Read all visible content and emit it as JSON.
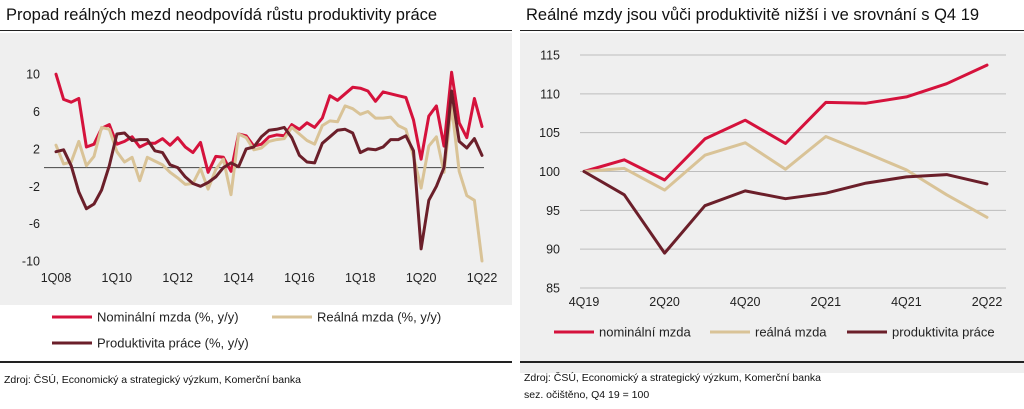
{
  "left": {
    "title": "Propad reálných mezd neodpovídá růstu produktivity práce",
    "source": "Zdroj: ČSÚ, Economický a strategický výzkum, Komerční banka"
  },
  "right": {
    "title": "Reálné mzdy jsou vůči produktivitě nižší i ve srovnání s Q4 19",
    "source": "Zdroj: ČSÚ, Economický a strategický výzkum, Komerční banka",
    "note": "sez. očištěno, Q4 19 = 100"
  },
  "chart_data": [
    {
      "type": "line",
      "title": "Propad reálných mezd neodpovídá růstu produktivity práce",
      "x_tick_labels": [
        "1Q08",
        "1Q10",
        "1Q12",
        "1Q14",
        "1Q16",
        "1Q18",
        "1Q20",
        "1Q22"
      ],
      "x_tick_index": [
        0,
        8,
        16,
        24,
        32,
        40,
        48,
        56
      ],
      "ylim": [
        -10,
        12
      ],
      "y_ticks": [
        10,
        6,
        2,
        -2,
        -6,
        -10
      ],
      "grid": false,
      "legend_position": "bottom",
      "series": [
        {
          "name": "Nominální mzda (%, y/y)",
          "color": "#d5123c",
          "values": [
            10,
            7.3,
            7,
            7.4,
            2.2,
            2.5,
            4.2,
            4.6,
            2.5,
            2.8,
            3.3,
            2.2,
            2.6,
            2.6,
            3.1,
            2.4,
            3.2,
            2.2,
            1.6,
            2.7,
            -0.5,
            1.2,
            1.1,
            -0.4,
            3.6,
            3.4,
            2.3,
            2.5,
            3.3,
            3.5,
            3.4,
            4.6,
            4.1,
            4.8,
            4.3,
            5.3,
            7.7,
            7.2,
            7.9,
            8.6,
            8.5,
            8.2,
            7.1,
            8.1,
            7.9,
            7.7,
            7.5,
            5.1,
            0.9,
            5.5,
            6.6,
            2.3,
            10.2,
            4.8,
            3.2,
            7.4,
            4.4
          ]
        },
        {
          "name": "Reálná mzda (%, y/y)",
          "color": "#d9c397",
          "values": [
            2.4,
            0.4,
            0.6,
            2.8,
            0.2,
            1.2,
            4.3,
            4.1,
            1.7,
            0.6,
            1.1,
            -1.4,
            1.1,
            0.7,
            0.3,
            -0.5,
            -1.1,
            -1.8,
            -1.7,
            -0.1,
            -2.3,
            -0.2,
            0.9,
            -2.9,
            3.6,
            3.2,
            1.9,
            2.1,
            2.8,
            3.0,
            3.1,
            4.3,
            3.6,
            2.9,
            2.5,
            4.5,
            5.0,
            4.9,
            6.6,
            6.3,
            5.7,
            6.0,
            5.3,
            5.3,
            5.4,
            4.5,
            4.1,
            1.2,
            -2.2,
            2.3,
            3.3,
            -0.5,
            6.6,
            -0.4,
            -3.0,
            -3.5,
            -10.0
          ]
        },
        {
          "name": "Produktivita práce (%, y/y)",
          "color": "#6b1f2a",
          "values": [
            1.7,
            1.9,
            0.2,
            -2.6,
            -4.4,
            -3.9,
            -2.4,
            0.2,
            3.6,
            3.7,
            2.9,
            3.0,
            3.0,
            1.8,
            1.6,
            0.3,
            0.0,
            -1.0,
            -1.7,
            -2.0,
            -1.6,
            -1.0,
            0.0,
            0.5,
            0.1,
            2.0,
            2.2,
            3.3,
            4.0,
            4.1,
            4.3,
            3.2,
            1.3,
            0.6,
            0.5,
            2.6,
            3.3,
            4.0,
            4.1,
            3.7,
            1.6,
            2.0,
            1.9,
            2.2,
            3.0,
            3.0,
            3.4,
            1.8,
            -8.7,
            -3.5,
            -2.0,
            0.0,
            8.2,
            2.8,
            2.1,
            3.1,
            1.3
          ]
        }
      ]
    },
    {
      "type": "line",
      "title": "Reálné mzdy jsou vůči produktivitě nižší i ve srovnání s Q4 19",
      "categories": [
        "4Q19",
        "1Q20",
        "2Q20",
        "3Q20",
        "4Q20",
        "1Q21",
        "2Q21",
        "3Q21",
        "4Q21",
        "1Q22",
        "2Q22"
      ],
      "x_tick_labels": [
        "4Q19",
        "2Q20",
        "4Q20",
        "2Q21",
        "4Q21",
        "2Q22"
      ],
      "x_tick_index": [
        0,
        2,
        4,
        6,
        8,
        10
      ],
      "ylim": [
        85,
        115
      ],
      "y_ticks": [
        115,
        110,
        105,
        100,
        95,
        90,
        85
      ],
      "grid": true,
      "legend_position": "bottom",
      "series": [
        {
          "name": "nominální mzda",
          "color": "#d5123c",
          "values": [
            100,
            101.5,
            98.9,
            104.2,
            106.6,
            103.6,
            108.9,
            108.8,
            109.6,
            111.3,
            113.7
          ]
        },
        {
          "name": "reálná mzda",
          "color": "#d9c397",
          "values": [
            100,
            100.4,
            97.6,
            102.1,
            103.7,
            100.3,
            104.5,
            102.4,
            100.2,
            97.0,
            94.1
          ]
        },
        {
          "name": "produktivita práce",
          "color": "#6b1f2a",
          "values": [
            100,
            97.0,
            89.5,
            95.6,
            97.5,
            96.5,
            97.2,
            98.5,
            99.3,
            99.6,
            98.4
          ]
        }
      ]
    }
  ]
}
